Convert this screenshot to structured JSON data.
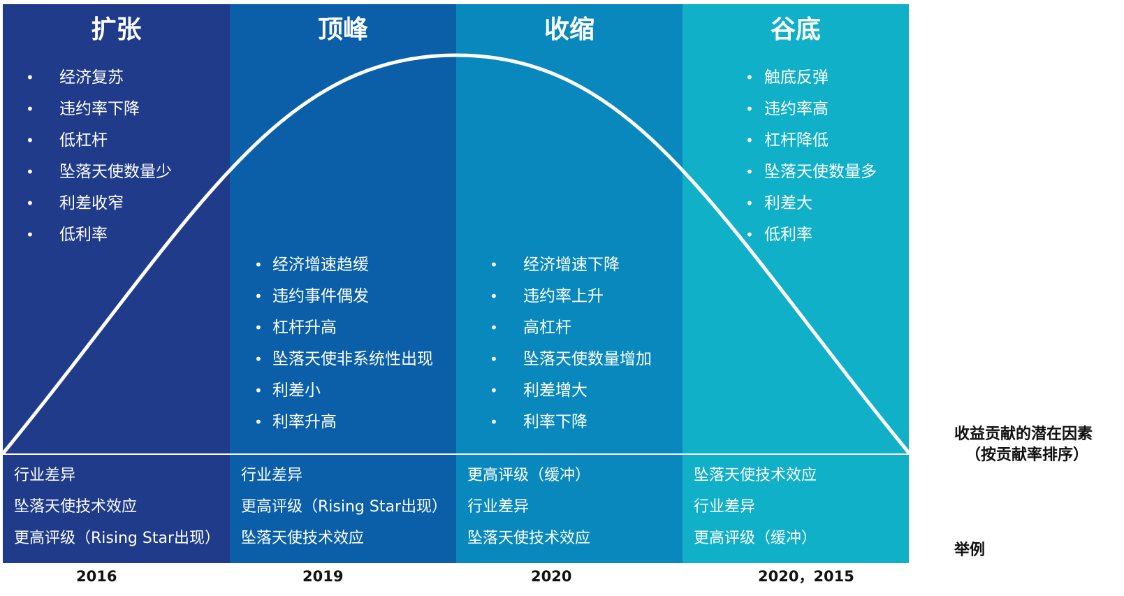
{
  "phases": [
    {
      "title": "扩张",
      "color": "#1f3b8a",
      "bullets": [
        "经济复苏",
        "违约率下降",
        "低杠杆",
        "坠落天使数量少",
        "利差收窄",
        "低利率"
      ],
      "examples": [
        "行业差异",
        "坠落天使技术效应",
        "更高评级（Rising Star出现）"
      ],
      "year": "2016"
    },
    {
      "title": "顶峰",
      "color": "#0a5fa8",
      "bullets": [
        "经济增速趋缓",
        "违约事件偶发",
        "杠杆升高",
        "坠落天使非系统性出现",
        "利差小",
        "利率升高"
      ],
      "examples": [
        "行业差异",
        "更高评级（Rising Star出现）",
        "坠落天使技术效应"
      ],
      "year": "2019"
    },
    {
      "title": "收缩",
      "color": "#0888bd",
      "bullets": [
        "经济增速下降",
        "违约率上升",
        "高杠杆",
        "坠落天使数量增加",
        "利差增大",
        "利率下降"
      ],
      "examples": [
        "更高评级（缓冲）",
        "行业差异",
        "坠落天使技术效应"
      ],
      "year": "2020"
    },
    {
      "title": "谷底",
      "color": "#10b0c8",
      "bullets": [
        "触底反弹",
        "违约率高",
        "杠杆降低",
        "坠落天使数量多",
        "利差大",
        "低利率"
      ],
      "examples": [
        "坠落天使技术效应",
        "行业差异",
        "更高评级（缓冲）"
      ],
      "year": "2020，2015"
    }
  ],
  "side_labels": {
    "factors_line1": "收益贡献的潜在因素",
    "factors_line2": "（按贡献率排序）",
    "example": "举例"
  }
}
